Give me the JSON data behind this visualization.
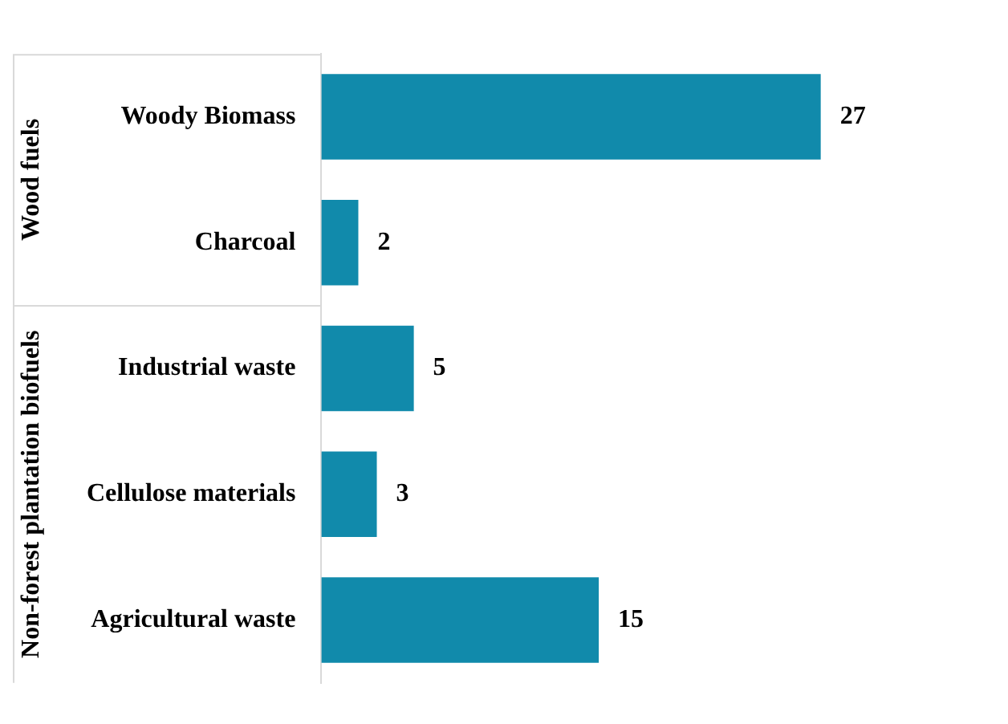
{
  "chart_data": {
    "type": "bar",
    "orientation": "horizontal",
    "categories": [
      "Woody Biomass",
      "Charcoal",
      "Industrial waste",
      "Cellulose materials",
      "Agricultural waste"
    ],
    "values": [
      27,
      2,
      5,
      3,
      15
    ],
    "color": "#118aab",
    "data_labels": true,
    "legend": false,
    "annotations": [
      "Wood fuels",
      "Non-forest plantation biofuels"
    ]
  }
}
